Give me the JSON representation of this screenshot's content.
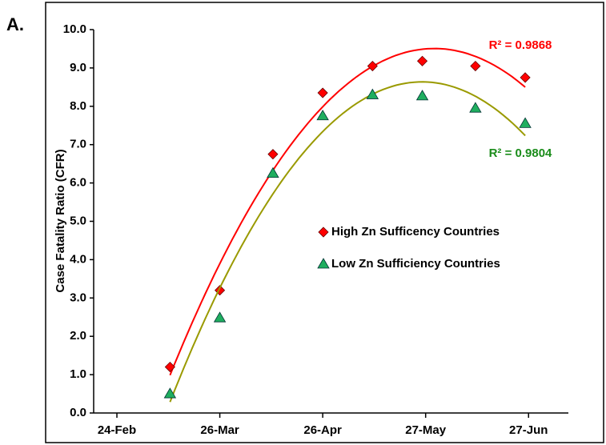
{
  "chart_data": {
    "type": "scatter",
    "panel_label": "A.",
    "y_label": "Case Fatality Ratio (CFR)",
    "xlim": [
      48,
      191
    ],
    "xticks": [
      {
        "value": 55,
        "label": "24-Feb"
      },
      {
        "value": 86,
        "label": "26-Mar"
      },
      {
        "value": 117,
        "label": "26-Apr"
      },
      {
        "value": 148,
        "label": "27-May"
      },
      {
        "value": 179,
        "label": "27-Jun"
      }
    ],
    "ylim": [
      0,
      10
    ],
    "yticks": [
      {
        "value": 0,
        "label": "0.0"
      },
      {
        "value": 1,
        "label": "1.0"
      },
      {
        "value": 2,
        "label": "2.0"
      },
      {
        "value": 3,
        "label": "3.0"
      },
      {
        "value": 4,
        "label": "4.0"
      },
      {
        "value": 5,
        "label": "5.0"
      },
      {
        "value": 6,
        "label": "6.0"
      },
      {
        "value": 7,
        "label": "7.0"
      },
      {
        "value": 8,
        "label": "8.0"
      },
      {
        "value": 9,
        "label": "9.0"
      },
      {
        "value": 10,
        "label": "10.0"
      }
    ],
    "x": [
      71,
      86,
      102,
      117,
      132,
      147,
      163,
      178
    ],
    "series": [
      {
        "name": "High Zn Sufficency Countries",
        "color": "#ff0000",
        "line_color": "#ff0000",
        "marker": "diamond",
        "r2": "R² = 0.9868",
        "r2_color": "#ff0000",
        "values": [
          1.2,
          3.2,
          6.75,
          8.35,
          9.05,
          9.18,
          9.05,
          8.75
        ]
      },
      {
        "name": "Low Zn Sufficiency Countries",
        "color": "#1fae5f",
        "line_color": "#9a9a00",
        "marker": "triangle",
        "r2": "R² = 0.9804",
        "r2_color": "#1a8c1a",
        "values": [
          0.5,
          2.48,
          6.25,
          7.75,
          8.3,
          8.27,
          7.95,
          7.55
        ]
      }
    ]
  }
}
